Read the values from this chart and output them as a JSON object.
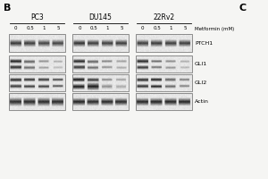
{
  "panel_label_B": "B",
  "panel_label_C": "C",
  "cell_lines": [
    "PC3",
    "DU145",
    "22Rv2"
  ],
  "doses": [
    "0",
    "0.5",
    "1",
    "5"
  ],
  "x_label": "Metformin (mM)",
  "row_labels": [
    "PTCH1",
    "GLI1",
    "GLI2",
    "Actin"
  ],
  "figure_bg": "#f5f5f3",
  "blot_bg": "#e8e8e8",
  "panel_bg": "#ffffff"
}
